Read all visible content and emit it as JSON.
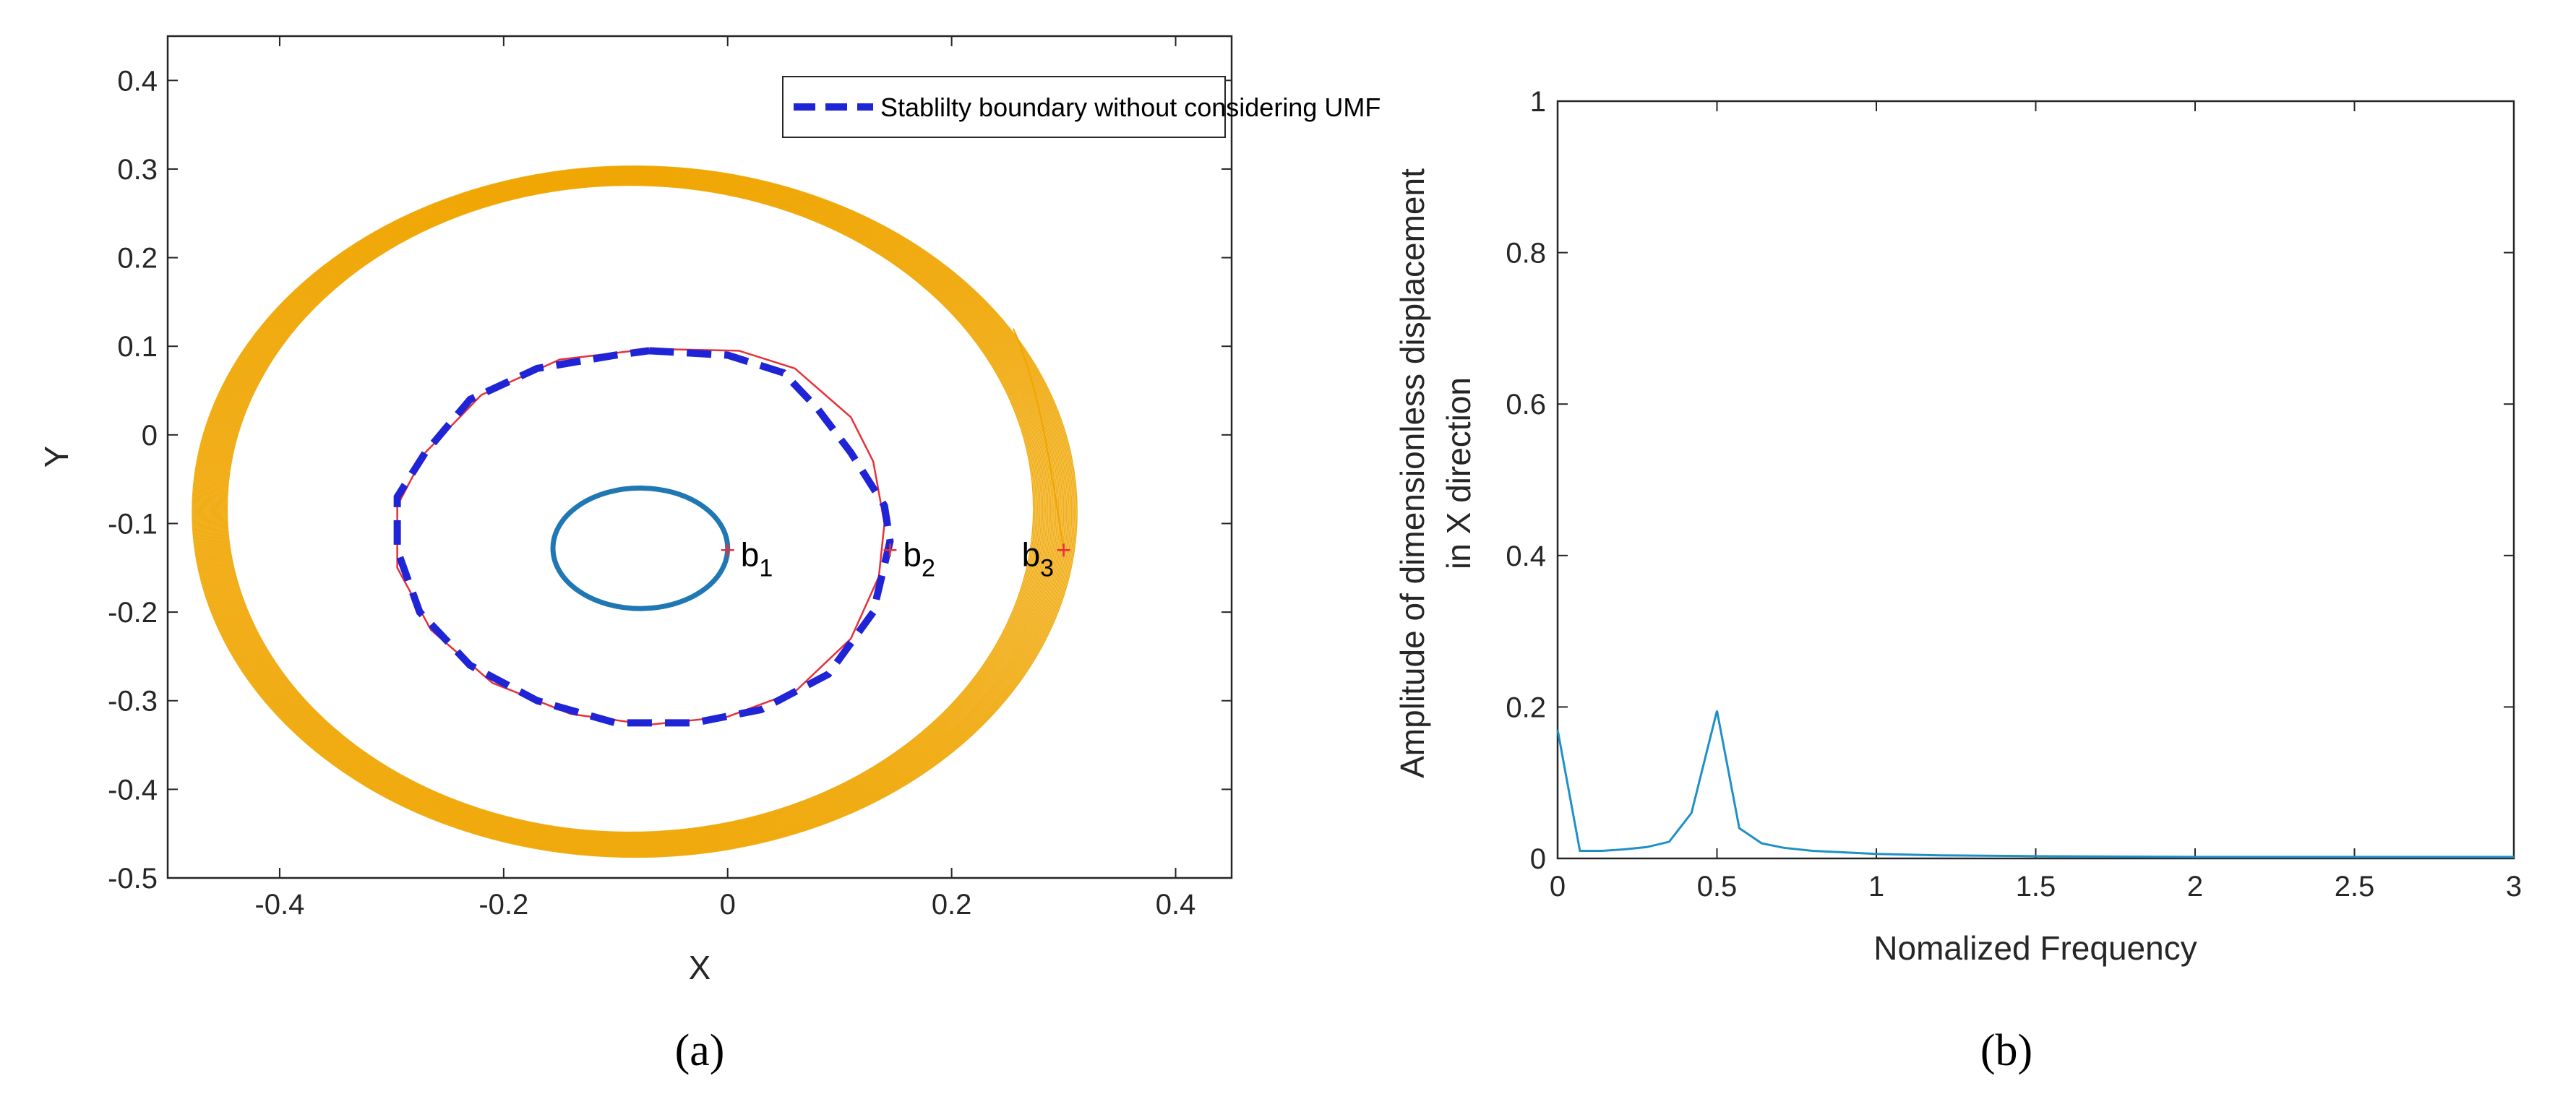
{
  "chart_data": [
    {
      "panel": "a",
      "type": "line",
      "xlabel": "X",
      "ylabel": "Y",
      "xlim": [
        -0.5,
        0.45
      ],
      "ylim": [
        -0.5,
        0.45
      ],
      "xticks": [
        "-0.4",
        "-0.2",
        "0",
        "0.2",
        "0.4"
      ],
      "xtick_values": [
        -0.4,
        -0.2,
        0,
        0.2,
        0.4
      ],
      "yticks": [
        "0.4",
        "0.3",
        "0.2",
        "0.1",
        "0",
        "-0.1",
        "-0.2",
        "-0.3",
        "-0.4",
        "-0.5"
      ],
      "ytick_values": [
        0.4,
        0.3,
        0.2,
        0.1,
        0,
        -0.1,
        -0.2,
        -0.3,
        -0.4,
        -0.5
      ],
      "legend": {
        "label": "Stablilty boundary without considering UMF",
        "position": "top-right"
      },
      "colors": {
        "orbit_outer": "#f0a500",
        "stable_orbit": "#1f78b4",
        "trajectory_red": "#e8303a",
        "boundary": "#1f24d6",
        "marker": "#e8303a"
      },
      "series": [
        {
          "name": "Stablilty boundary without considering UMF",
          "style": "dashed",
          "color": "#1f24d6",
          "points": [
            [
              -0.07,
              0.095
            ],
            [
              0.0,
              0.09
            ],
            [
              0.05,
              0.07
            ],
            [
              0.08,
              0.03
            ],
            [
              0.11,
              -0.02
            ],
            [
              0.14,
              -0.08
            ],
            [
              0.145,
              -0.12
            ],
            [
              0.13,
              -0.2
            ],
            [
              0.09,
              -0.27
            ],
            [
              0.03,
              -0.31
            ],
            [
              -0.03,
              -0.325
            ],
            [
              -0.1,
              -0.325
            ],
            [
              -0.17,
              -0.3
            ],
            [
              -0.23,
              -0.26
            ],
            [
              -0.275,
              -0.2
            ],
            [
              -0.295,
              -0.13
            ],
            [
              -0.295,
              -0.07
            ],
            [
              -0.27,
              -0.02
            ],
            [
              -0.23,
              0.04
            ],
            [
              -0.17,
              0.075
            ],
            [
              -0.1,
              0.09
            ],
            [
              -0.07,
              0.095
            ]
          ]
        },
        {
          "name": "trajectory b2",
          "style": "solid",
          "color": "#e8303a",
          "points": [
            [
              -0.07,
              0.097
            ],
            [
              0.01,
              0.095
            ],
            [
              0.06,
              0.075
            ],
            [
              0.11,
              0.02
            ],
            [
              0.13,
              -0.03
            ],
            [
              0.14,
              -0.1
            ],
            [
              0.135,
              -0.16
            ],
            [
              0.11,
              -0.23
            ],
            [
              0.06,
              -0.29
            ],
            [
              0.0,
              -0.318
            ],
            [
              -0.07,
              -0.327
            ],
            [
              -0.14,
              -0.315
            ],
            [
              -0.21,
              -0.28
            ],
            [
              -0.265,
              -0.22
            ],
            [
              -0.295,
              -0.15
            ],
            [
              -0.295,
              -0.08
            ],
            [
              -0.27,
              -0.02
            ],
            [
              -0.22,
              0.045
            ],
            [
              -0.15,
              0.085
            ],
            [
              -0.07,
              0.097
            ]
          ]
        },
        {
          "name": "trajectory b1",
          "style": "solid",
          "color": "#1f78b4",
          "ellipse": {
            "cx": -0.078,
            "cy": -0.128,
            "rx": 0.078,
            "ry": 0.068
          }
        },
        {
          "name": "trajectory b3",
          "style": "solid",
          "color": "#f0a500",
          "ellipse_band": {
            "cx": -0.085,
            "cy": -0.085,
            "rx_min": 0.36,
            "rx_max": 0.395,
            "ry_min": 0.365,
            "ry_max": 0.39
          }
        }
      ],
      "annotations": [
        {
          "base": "b",
          "sub": "1",
          "x": 0.0,
          "y": -0.13
        },
        {
          "base": "b",
          "sub": "2",
          "x": 0.145,
          "y": -0.13
        },
        {
          "base": "b",
          "sub": "3",
          "x": 0.3,
          "y": -0.13
        }
      ],
      "panel_label": "(a)"
    },
    {
      "panel": "b",
      "type": "line",
      "xlabel": "Nomalized Frequency",
      "ylabel_line1": "Amplitude of dimensionless displacement",
      "ylabel_line2": "in X direction",
      "xlim": [
        0,
        3
      ],
      "ylim": [
        0,
        1
      ],
      "xticks": [
        "0",
        "0.5",
        "1",
        "1.5",
        "2",
        "2.5",
        "3"
      ],
      "xtick_values": [
        0,
        0.5,
        1,
        1.5,
        2,
        2.5,
        3
      ],
      "yticks": [
        "1",
        "0.8",
        "0.6",
        "0.4",
        "0.2",
        "0"
      ],
      "ytick_values": [
        1,
        0.8,
        0.6,
        0.4,
        0.2,
        0
      ],
      "colors": {
        "line": "#1f8fc8"
      },
      "series": [
        {
          "name": "amplitude",
          "x": [
            0,
            0.07,
            0.14,
            0.21,
            0.28,
            0.35,
            0.42,
            0.5,
            0.57,
            0.64,
            0.71,
            0.8,
            0.9,
            1.0,
            1.2,
            1.5,
            2.0,
            2.5,
            3.0
          ],
          "values": [
            0.17,
            0.01,
            0.01,
            0.012,
            0.015,
            0.022,
            0.06,
            0.195,
            0.04,
            0.02,
            0.014,
            0.01,
            0.008,
            0.006,
            0.004,
            0.003,
            0.002,
            0.002,
            0.002
          ]
        }
      ],
      "panel_label": "(b)"
    }
  ]
}
